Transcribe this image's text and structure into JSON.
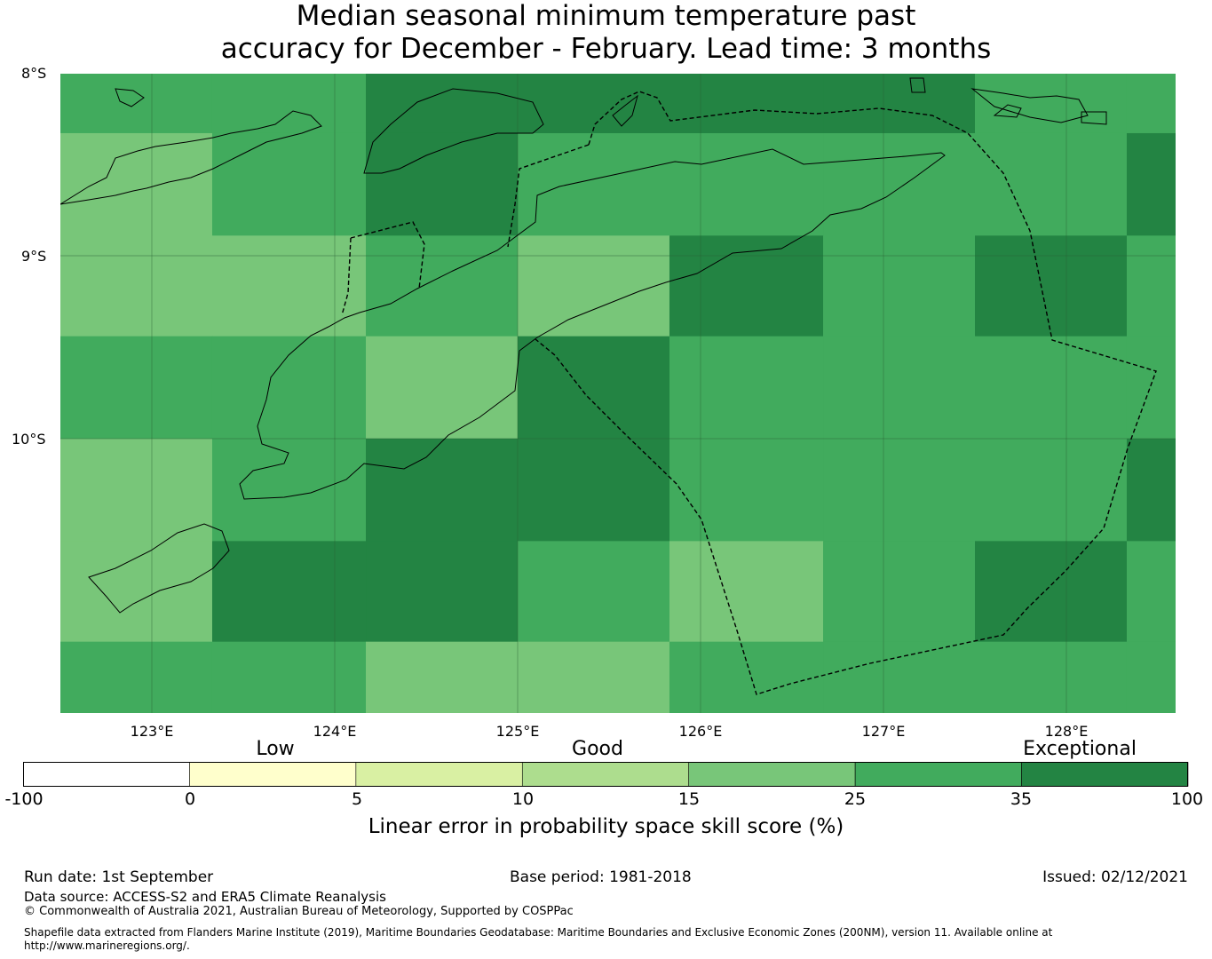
{
  "title": {
    "line1": "Median seasonal minimum temperature past",
    "line2": "accuracy for December - February. Lead time: 3 months"
  },
  "map": {
    "lat_labels": [
      "8°S",
      "9°S",
      "10°S"
    ],
    "lon_labels": [
      "123°E",
      "124°E",
      "125°E",
      "126°E",
      "127°E",
      "128°E"
    ],
    "grid_lon_edges": [
      122.5,
      123.33,
      124.17,
      125.0,
      125.83,
      126.67,
      127.5,
      128.33,
      128.6
    ],
    "grid_lat_edges": [
      -7.99,
      -8.33,
      -8.89,
      -9.44,
      -10.0,
      -10.56,
      -11.11,
      -11.5
    ],
    "skill_category_grid": [
      [
        5,
        5,
        6,
        6,
        6,
        6,
        5,
        5
      ],
      [
        4,
        5,
        6,
        5,
        5,
        5,
        5,
        6
      ],
      [
        4,
        4,
        5,
        4,
        6,
        5,
        6,
        5
      ],
      [
        5,
        5,
        4,
        6,
        5,
        5,
        5,
        5
      ],
      [
        4,
        5,
        6,
        6,
        5,
        5,
        5,
        6
      ],
      [
        4,
        6,
        6,
        5,
        4,
        5,
        6,
        5
      ],
      [
        5,
        5,
        4,
        4,
        5,
        5,
        5,
        5
      ]
    ]
  },
  "colorbar": {
    "category_labels": [
      "Low",
      "Good",
      "Exceptional"
    ],
    "ticks": [
      "-100",
      "0",
      "5",
      "10",
      "15",
      "25",
      "35",
      "100"
    ],
    "colors": [
      "#ffffff",
      "#ffffcc",
      "#d9f0a3",
      "#addd8e",
      "#78c679",
      "#41ab5d",
      "#238443"
    ],
    "title": "Linear error in probability space skill score (%)"
  },
  "footer": {
    "run_date": "Run date: 1st September",
    "base_period": "Base period: 1981-2018",
    "issued": "Issued: 02/12/2021",
    "data_source": "Data source: ACCESS-S2 and ERA5 Climate Reanalysis",
    "copyright": "© Commonwealth of Australia 2021, Australian Bureau of Meteorology, Supported by COSPPac",
    "shapefile": "Shapefile data extracted from Flanders Marine Institute (2019), Maritime Boundaries Geodatabase: Maritime Boundaries and Exclusive Economic Zones (200NM), version 11. Available online at http://www.marineregions.org/."
  }
}
